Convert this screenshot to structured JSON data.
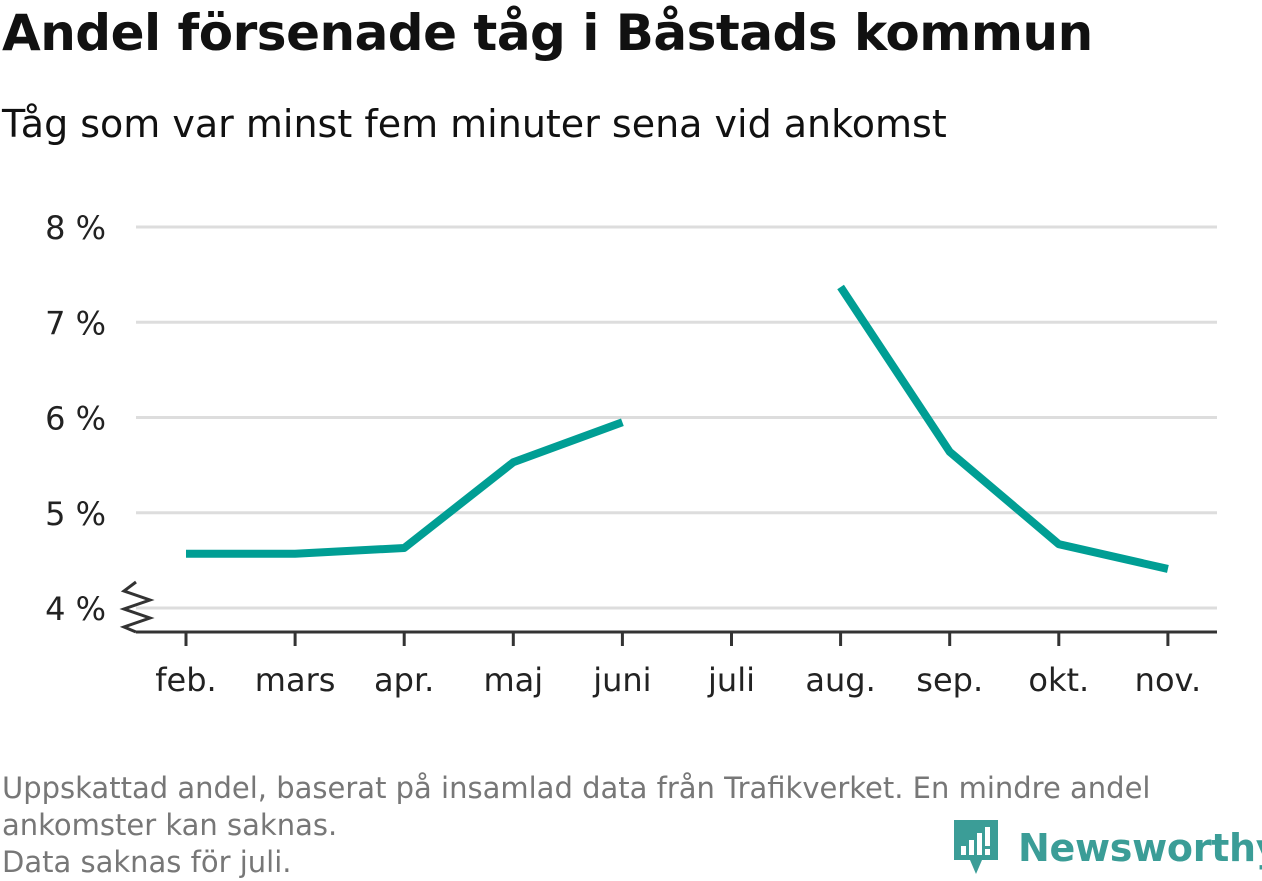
{
  "header": {
    "title": "Andel försenade tåg i Båstads kommun",
    "subtitle": "Tåg som var minst fem minuter sena vid ankomst"
  },
  "footer": {
    "note_line1": "Uppskattad andel, baserat på insamlad data från Trafikverket. En mindre andel",
    "note_line2": "ankomster kan saknas.",
    "note_line3": "Data saknas för juli.",
    "brand": "Newsworthy",
    "brand_icon": "newsworthy-logo-icon"
  },
  "colors": {
    "line": "#009e94",
    "grid": "#dddddd",
    "axis": "#333333",
    "brand": "#3b9d97"
  },
  "chart_data": {
    "type": "line",
    "title": "Andel försenade tåg i Båstads kommun",
    "subtitle": "Tåg som var minst fem minuter sena vid ankomst",
    "categories": [
      "feb.",
      "mars",
      "apr.",
      "maj",
      "juni",
      "juli",
      "aug.",
      "sep.",
      "okt.",
      "nov."
    ],
    "series": [
      {
        "values": [
          4.57,
          4.57,
          4.63,
          5.53,
          5.95,
          null,
          7.37,
          5.64,
          4.67,
          4.41
        ]
      }
    ],
    "yticks": [
      4,
      5,
      6,
      7,
      8
    ],
    "ytick_labels": [
      "4 %",
      "5 %",
      "6 %",
      "7 %",
      "8 %"
    ],
    "ylim": [
      4,
      8
    ],
    "y_axis_break": true,
    "grid": true,
    "legend": "none"
  }
}
